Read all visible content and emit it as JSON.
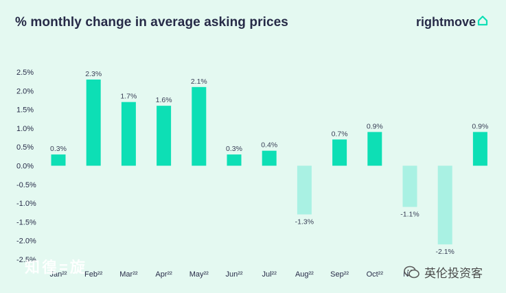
{
  "header": {
    "title": "% monthly change in average asking prices",
    "brand": "rightmove"
  },
  "watermarks": {
    "left": "知徨=旋",
    "right": "英伦投资客"
  },
  "colors": {
    "positive": "#0ddfb5",
    "negative": "#a9f1e3",
    "background": "#e4f9f1",
    "text": "#262a47",
    "brand_icon": "#0ddfb5"
  },
  "chart_data": {
    "type": "bar",
    "title": "% monthly change in average asking prices",
    "xlabel": "",
    "ylabel": "",
    "ylim": [
      -2.5,
      2.5
    ],
    "yticks": [
      "2.5%",
      "2.0%",
      "1.5%",
      "1.0%",
      "0.5%",
      "0.0%",
      "-0.5%",
      "-1.0%",
      "-1.5%",
      "-2.0%",
      "-2.5%"
    ],
    "ytick_values": [
      2.5,
      2.0,
      1.5,
      1.0,
      0.5,
      0.0,
      -0.5,
      -1.0,
      -1.5,
      -2.0,
      -2.5
    ],
    "categories": [
      "Jan²²",
      "Feb²²",
      "Mar²²",
      "Apr²²",
      "May²²",
      "Jun²²",
      "Jul²²",
      "Aug²²",
      "Sep²²",
      "Oct²²",
      "Nov",
      "",
      ""
    ],
    "values": [
      0.3,
      2.3,
      1.7,
      1.6,
      2.1,
      0.3,
      0.4,
      -1.3,
      0.7,
      0.9,
      -1.1,
      -2.1,
      0.9
    ],
    "value_labels": [
      "0.3%",
      "2.3%",
      "1.7%",
      "1.6%",
      "2.1%",
      "0.3%",
      "0.4%",
      "-1.3%",
      "0.7%",
      "0.9%",
      "-1.1%",
      "-2.1%",
      "0.9%"
    ],
    "grid": false,
    "legend": "none"
  }
}
